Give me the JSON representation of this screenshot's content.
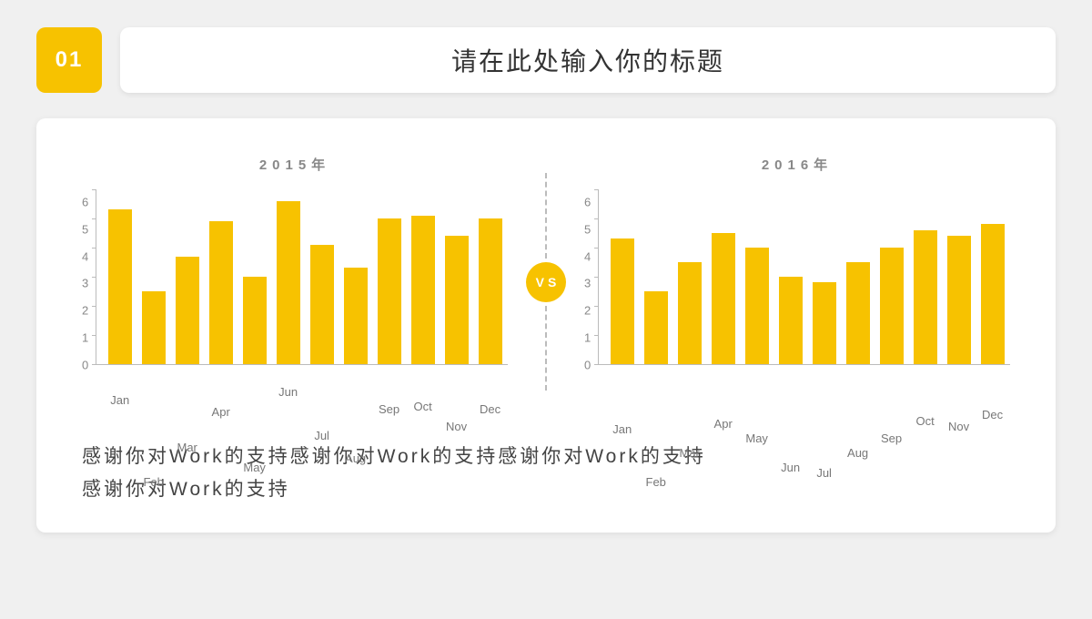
{
  "header": {
    "badge": "01",
    "title": "请在此处输入你的标题"
  },
  "styling": {
    "accent_color": "#f7c200",
    "bar_color": "#f7c200",
    "vs_bg": "#f7c200",
    "background": "#f0f0f0",
    "panel_bg": "#ffffff",
    "text_color": "#444444",
    "muted_color": "#888888",
    "axis_color": "#bbbbbb",
    "divider_color": "#bbbbbb"
  },
  "vs_label": "VS",
  "charts": {
    "left": {
      "title": "2015年",
      "type": "bar",
      "ylim": [
        0,
        6
      ],
      "ytick_step": 1,
      "categories": [
        "Jan",
        "Feb",
        "Mar",
        "Apr",
        "May",
        "Jun",
        "Jul",
        "Aug",
        "Sep",
        "Oct",
        "Nov",
        "Dec"
      ],
      "values": [
        5.3,
        2.5,
        3.7,
        4.9,
        3.0,
        5.6,
        4.1,
        3.3,
        5.0,
        5.1,
        4.4,
        5.0
      ]
    },
    "right": {
      "title": "2016年",
      "type": "bar",
      "ylim": [
        0,
        6
      ],
      "ytick_step": 1,
      "categories": [
        "Jan",
        "Feb",
        "Mar",
        "Apr",
        "May",
        "Jun",
        "Jul",
        "Aug",
        "Sep",
        "Oct",
        "Nov",
        "Dec"
      ],
      "values": [
        4.3,
        2.5,
        3.5,
        4.5,
        4.0,
        3.0,
        2.8,
        3.5,
        4.0,
        4.6,
        4.4,
        4.8
      ]
    }
  },
  "footer": {
    "line1": "感谢你对Work的支持感谢你对Work的支持感谢你对Work的支持",
    "line2": "感谢你对Work的支持"
  }
}
